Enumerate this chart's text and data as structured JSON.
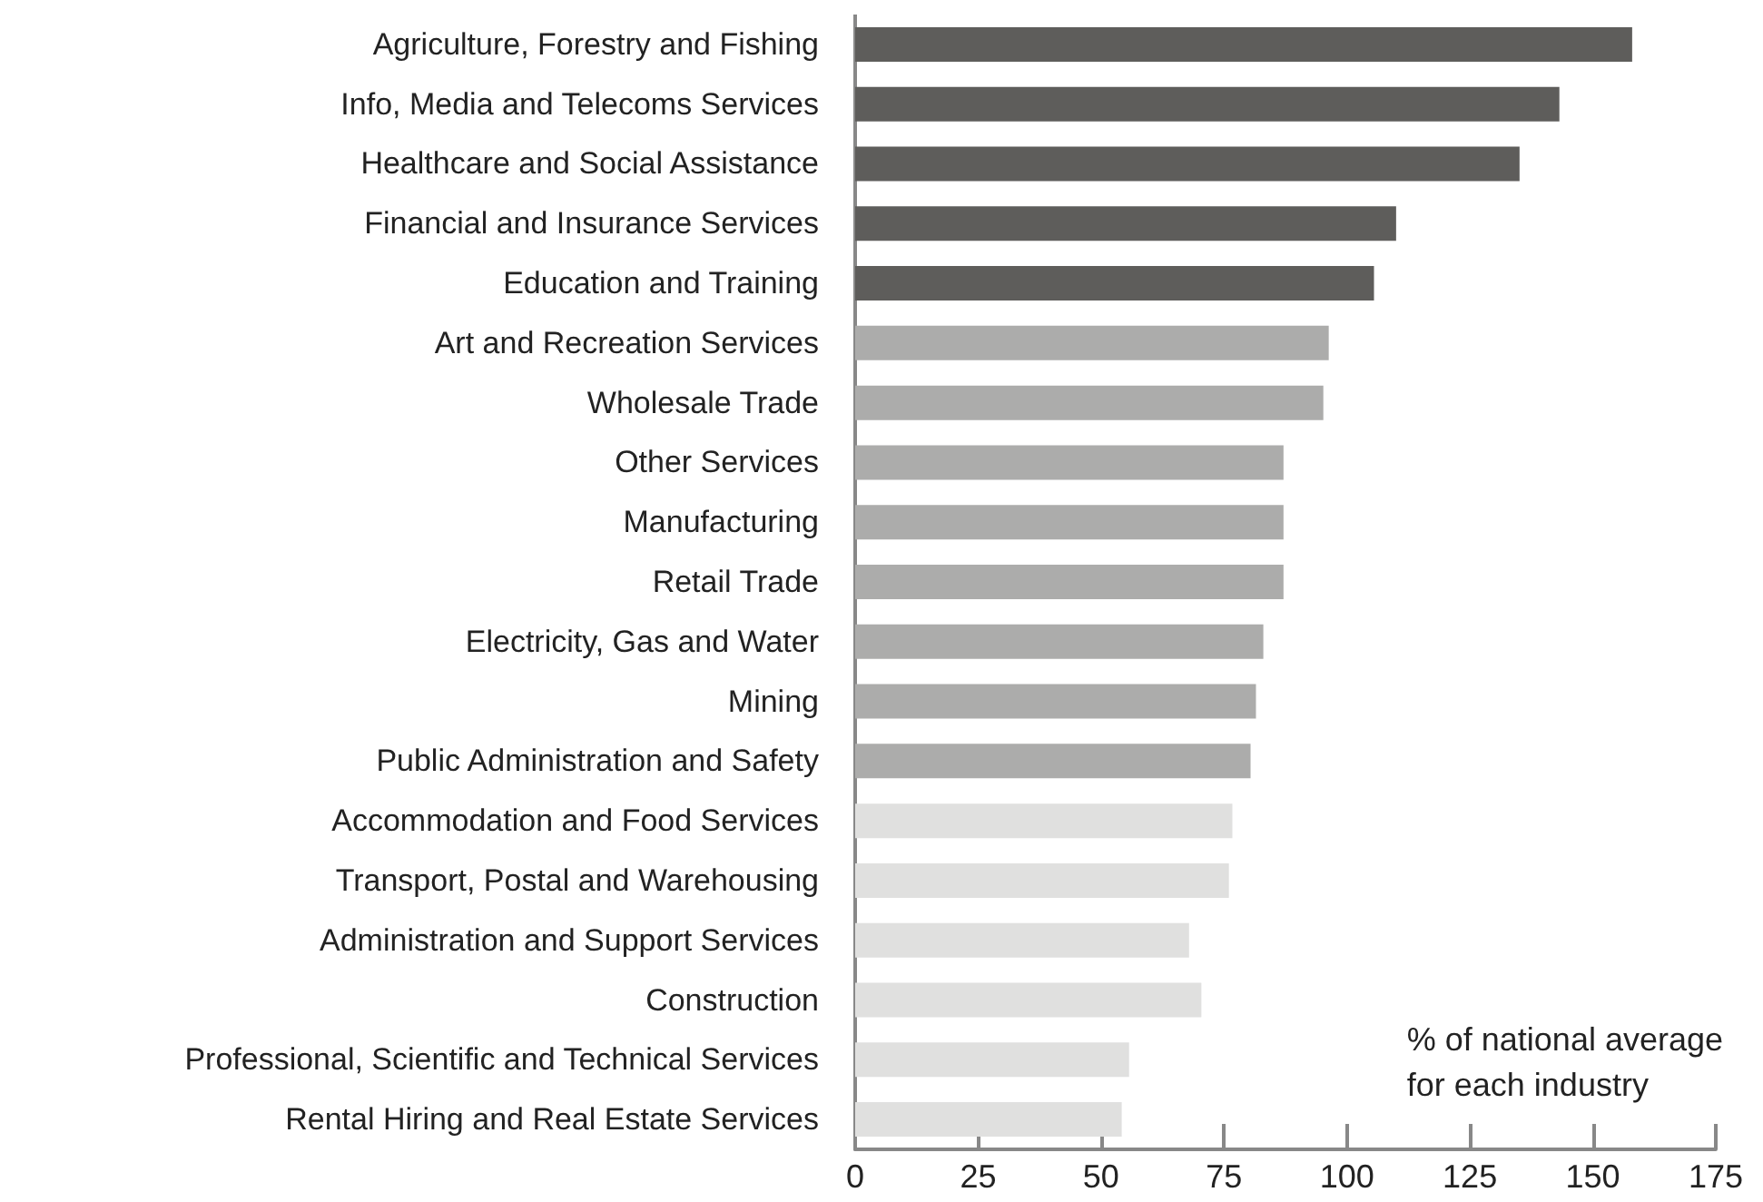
{
  "chart_data": {
    "type": "bar",
    "orientation": "horizontal",
    "categories": [
      "Agriculture, Forestry and Fishing",
      "Info, Media and Telecoms Services",
      "Healthcare and Social Assistance",
      "Financial and Insurance Services",
      "Education and Training",
      "Art and Recreation Services",
      "Wholesale Trade",
      "Other Services",
      "Manufacturing",
      "Retail Trade",
      "Electricity, Gas and Water",
      "Mining",
      "Public Administration and Safety",
      "Accommodation and Food Services",
      "Transport, Postal and Warehousing",
      "Administration and Support Services",
      "Construction",
      "Professional, Scientific and Technical Services",
      "Rental Hiring and Real Estate Services"
    ],
    "values": [
      158,
      143.2,
      135.1,
      110,
      105.5,
      96.3,
      95.2,
      87.1,
      87.1,
      87.1,
      83,
      81.5,
      80.4,
      76.7,
      76,
      67.9,
      70.4,
      55.7,
      54.2
    ],
    "colors": [
      "#5e5d5b",
      "#5e5d5b",
      "#5e5d5b",
      "#5e5d5b",
      "#5e5d5b",
      "#acacab",
      "#acacab",
      "#acacab",
      "#acacab",
      "#acacab",
      "#acacab",
      "#acacab",
      "#acacab",
      "#e0e0df",
      "#e0e0df",
      "#e0e0df",
      "#e0e0df",
      "#e0e0df",
      "#e0e0df"
    ],
    "xlim": [
      0,
      175
    ],
    "xticks": [
      0,
      25,
      50,
      75,
      100,
      125,
      150,
      175
    ],
    "grid": false,
    "annotations": [
      "% of national average\nfor each industry"
    ]
  }
}
